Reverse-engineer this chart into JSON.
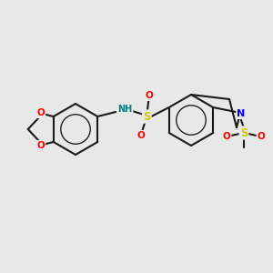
{
  "background_color": "#e8e8e8",
  "bond_color": "#1a1a1a",
  "bond_width": 1.5,
  "atom_colors": {
    "O": "#ff0000",
    "N": "#0000ff",
    "S": "#cccc00",
    "NH": "#008080",
    "C": "#1a1a1a"
  },
  "font_size_atom": 7.5,
  "font_size_label": 6.5
}
